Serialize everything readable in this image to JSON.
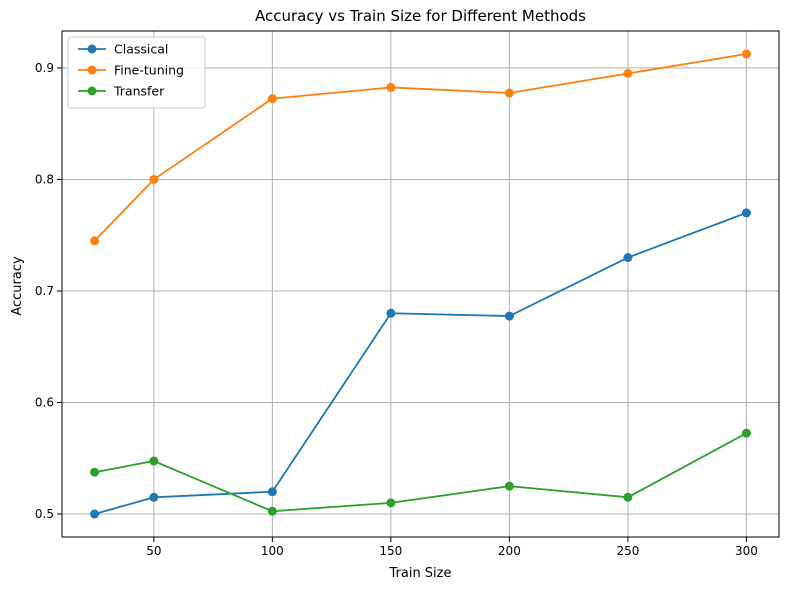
{
  "chart_data": {
    "type": "line",
    "title": "Accuracy vs Train Size for Different Methods",
    "xlabel": "Train Size",
    "ylabel": "Accuracy",
    "x": [
      25,
      50,
      100,
      150,
      200,
      250,
      300
    ],
    "xticks": [
      50,
      100,
      150,
      200,
      250,
      300
    ],
    "xtick_labels": [
      "50",
      "100",
      "150",
      "200",
      "250",
      "300"
    ],
    "yticks": [
      0.5,
      0.6,
      0.7,
      0.8,
      0.9
    ],
    "ytick_labels": [
      "0.5",
      "0.6",
      "0.7",
      "0.8",
      "0.9"
    ],
    "xlim": [
      11.25,
      313.75
    ],
    "ylim": [
      0.4794,
      0.9331
    ],
    "grid": true,
    "legend_position": "top-left",
    "series": [
      {
        "name": "Classical",
        "color": "#1f77b4",
        "marker": "circle",
        "values": [
          0.5,
          0.515,
          0.52,
          0.68,
          0.6775,
          0.73,
          0.77
        ]
      },
      {
        "name": "Fine-tuning",
        "color": "#ff7f0e",
        "marker": "circle",
        "values": [
          0.745,
          0.8,
          0.8725,
          0.8825,
          0.8775,
          0.895,
          0.9125
        ]
      },
      {
        "name": "Transfer",
        "color": "#2ca02c",
        "marker": "circle",
        "values": [
          0.5375,
          0.5475,
          0.5025,
          0.51,
          0.525,
          0.515,
          0.5725
        ]
      }
    ]
  }
}
